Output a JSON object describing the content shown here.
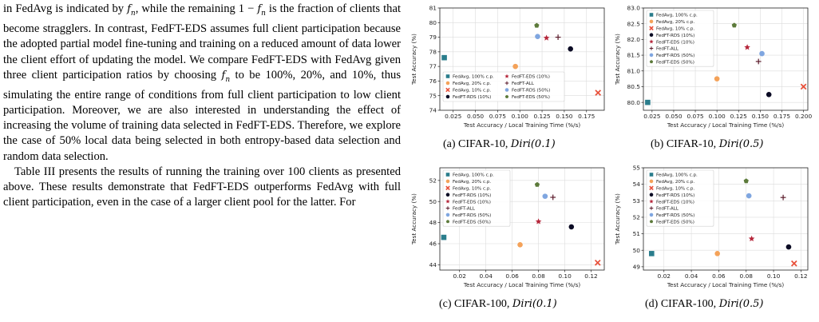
{
  "text": {
    "paragraphs": [
      [
        "in FedAvg is indicated by ",
        {
          "m": "f"
        },
        {
          "sub": "n"
        },
        ", while the remaining 1 − ",
        {
          "m": "f"
        },
        {
          "sub": "n"
        },
        " is the fraction of clients that become stragglers. In contrast, FedFT-EDS assumes full client participation because the adopted partial model fine-tuning and training on a reduced amount of data lower the client effort of updating the model. We compare FedFT-EDS with FedAvg given three client participation ratios by choosing ",
        {
          "m": "f"
        },
        {
          "sub": "n"
        },
        " to be 100%, 20%, and 10%, thus simulating the entire range of conditions from full client participation to low client participation. Moreover, we are also interested in understanding the effect of increasing the volume of training data selected in FedFT-EDS. Therefore, we explore the case of 50% local data being selected in both entropy-based data selection and random data selection."
      ],
      [
        "Table III presents the results of running the training over 100 clients as presented above. These results demonstrate that FedFT-EDS outperforms FedAvg with full client participation, even in the case of a larger client pool for the latter. For"
      ]
    ]
  },
  "figures": [
    {
      "caption": "(a) CIFAR-10, ",
      "caption_math": "Diri(0.1)"
    },
    {
      "caption": "(b) CIFAR-10, ",
      "caption_math": "Diri(0.5)"
    },
    {
      "caption": "(c) CIFAR-100, ",
      "caption_math": "Diri(0.1)"
    },
    {
      "caption": "(d) CIFAR-100, ",
      "caption_math": "Diri(0.5)"
    }
  ],
  "legend_entries": [
    {
      "name": "FedAvg, 100% c.p.",
      "color": "#2a7d8c",
      "marker": "square"
    },
    {
      "name": "FedAvg, 20% c.p.",
      "color": "#f4a259",
      "marker": "circle"
    },
    {
      "name": "FedAvg, 10% c.p.",
      "color": "#e8503a",
      "marker": "x"
    },
    {
      "name": "FedFT-RDS (10%)",
      "color": "#0b0b24",
      "marker": "circle"
    },
    {
      "name": "FedFT-EDS (10%)",
      "color": "#b5263a",
      "marker": "star"
    },
    {
      "name": "FedFT-ALL",
      "color": "#5a1a2a",
      "marker": "plus"
    },
    {
      "name": "FedFT-RDS (50%)",
      "color": "#7fa6e0",
      "marker": "circle"
    },
    {
      "name": "FedFT-EDS (50%)",
      "color": "#5c7a3a",
      "marker": "pentagon"
    }
  ],
  "chart_data": [
    {
      "type": "scatter",
      "xlabel": "Test Accuracy / Local Training Time (%/s)",
      "ylabel": "Test Accuracy (%)",
      "xlim": [
        0.01,
        0.195
      ],
      "ylim": [
        74,
        81
      ],
      "xticks": [
        0.025,
        0.05,
        0.075,
        0.1,
        0.125,
        0.15,
        0.175
      ],
      "xticklabels": [
        "0.025",
        "0.050",
        "0.075",
        "0.100",
        "0.125",
        "0.150",
        "0.175"
      ],
      "yticks": [
        74,
        75,
        76,
        77,
        78,
        79,
        80,
        81
      ],
      "yticklabels": [
        "74",
        "75",
        "76",
        "77",
        "78",
        "79",
        "80",
        "81"
      ],
      "legend": "lower-left-two-columns",
      "points": [
        [
          0.015,
          77.6
        ],
        [
          0.095,
          77.0
        ],
        [
          0.188,
          75.2
        ],
        [
          0.157,
          78.2
        ],
        [
          0.13,
          78.95
        ],
        [
          0.143,
          79.0
        ],
        [
          0.12,
          79.05
        ],
        [
          0.119,
          79.8
        ]
      ]
    },
    {
      "type": "scatter",
      "xlabel": "Test Accuracy / Local Training Time (%/s)",
      "ylabel": "Test Accuracy (%)",
      "xlim": [
        0.015,
        0.205
      ],
      "ylim": [
        79.75,
        83.0
      ],
      "xticks": [
        0.025,
        0.05,
        0.075,
        0.1,
        0.125,
        0.15,
        0.175,
        0.2
      ],
      "xticklabels": [
        "0.025",
        "0.050",
        "0.075",
        "0.100",
        "0.125",
        "0.150",
        "0.175",
        "0.200"
      ],
      "yticks": [
        80.0,
        80.5,
        81.0,
        81.5,
        82.0,
        82.5,
        83.0
      ],
      "yticklabels": [
        "80.0",
        "80.5",
        "81.0",
        "81.5",
        "82.0",
        "82.5",
        "83.0"
      ],
      "legend": "upper-left",
      "points": [
        [
          0.02,
          80.0
        ],
        [
          0.1,
          80.75
        ],
        [
          0.2,
          80.5
        ],
        [
          0.16,
          80.25
        ],
        [
          0.135,
          81.75
        ],
        [
          0.148,
          81.3
        ],
        [
          0.152,
          81.55
        ],
        [
          0.12,
          82.45
        ]
      ]
    },
    {
      "type": "scatter",
      "xlabel": "Test Accuracy / Local Training Time (%/s)",
      "ylabel": "Test Accuracy (%)",
      "xlim": [
        0.005,
        0.13
      ],
      "ylim": [
        43.5,
        53.2
      ],
      "xticks": [
        0.02,
        0.04,
        0.06,
        0.08,
        0.1,
        0.12
      ],
      "xticklabels": [
        "0.02",
        "0.04",
        "0.06",
        "0.08",
        "0.10",
        "0.12"
      ],
      "yticks": [
        44,
        46,
        48,
        50,
        52
      ],
      "yticklabels": [
        "44",
        "46",
        "48",
        "50",
        "52"
      ],
      "legend": "upper-left",
      "points": [
        [
          0.008,
          46.6
        ],
        [
          0.066,
          45.9
        ],
        [
          0.125,
          44.2
        ],
        [
          0.105,
          47.6
        ],
        [
          0.08,
          48.1
        ],
        [
          0.091,
          50.4
        ],
        [
          0.085,
          50.5
        ],
        [
          0.079,
          51.6
        ]
      ]
    },
    {
      "type": "scatter",
      "xlabel": "Test Accuracy / Local Training Time (%/s)",
      "ylabel": "Test Accuracy (%)",
      "xlim": [
        0.005,
        0.125
      ],
      "ylim": [
        48.8,
        55.0
      ],
      "xticks": [
        0.02,
        0.04,
        0.06,
        0.08,
        0.1,
        0.12
      ],
      "xticklabels": [
        "0.02",
        "0.04",
        "0.06",
        "0.08",
        "0.10",
        "0.12"
      ],
      "yticks": [
        49,
        50,
        51,
        52,
        53,
        54,
        55
      ],
      "yticklabels": [
        "49",
        "50",
        "51",
        "52",
        "53",
        "54",
        "55"
      ],
      "legend": "upper-left",
      "points": [
        [
          0.011,
          49.8
        ],
        [
          0.059,
          49.8
        ],
        [
          0.115,
          49.2
        ],
        [
          0.111,
          50.2
        ],
        [
          0.084,
          50.7
        ],
        [
          0.107,
          53.2
        ],
        [
          0.082,
          53.3
        ],
        [
          0.08,
          54.2
        ]
      ]
    }
  ]
}
